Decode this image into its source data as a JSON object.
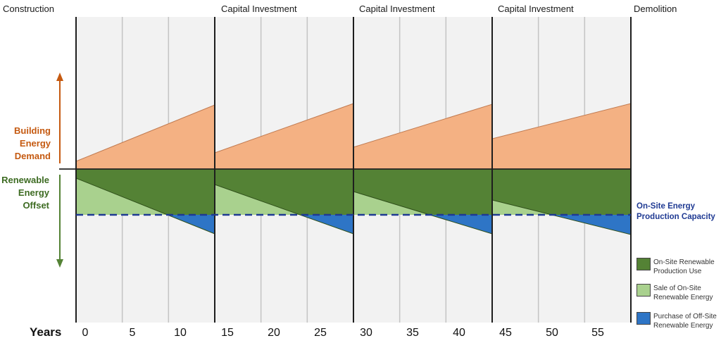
{
  "phases": [
    "Construction",
    "Capital Investment",
    "Capital Investment",
    "Capital Investment",
    "Demolition"
  ],
  "side_labels": {
    "demand": [
      "Building",
      "Energy",
      "Demand"
    ],
    "offset": [
      "Renewable",
      "Energy",
      "Offset"
    ]
  },
  "years_label": "Years",
  "ticks": [
    "0",
    "5",
    "10",
    "15",
    "20",
    "25",
    "30",
    "35",
    "40",
    "45",
    "50",
    "55"
  ],
  "capacity_label": [
    "On-Site Energy",
    "Production Capacity"
  ],
  "legend": [
    {
      "lines": [
        "On-Site Renewable",
        "Production Use"
      ],
      "color": "#548235"
    },
    {
      "lines": [
        "Sale of On-Site",
        "Renewable Energy"
      ],
      "color": "#a9d18e"
    },
    {
      "lines": [
        "Purchase of Off-Site",
        "Renewable Energy"
      ],
      "color": "#2e75c6"
    }
  ],
  "colors": {
    "demand": "#f4b183",
    "demand_arrow": "#c55a11",
    "onsite_use": "#548235",
    "sale": "#a9d18e",
    "purchase": "#2e75c6",
    "capacity_line": "#1f3a93",
    "offset_text": "#3d6b22",
    "panel": "#f2f2f2"
  }
}
